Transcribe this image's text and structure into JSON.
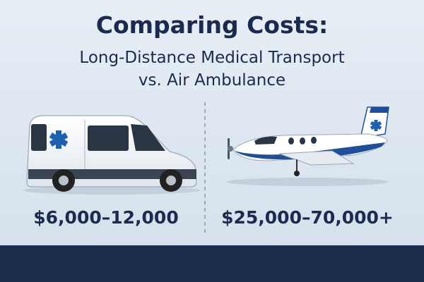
{
  "title": "Comparing Costs:",
  "subtitle": [
    "Long-Distance Medical Transport",
    "vs. Air Ambulance"
  ],
  "items": [
    {
      "price": "$6,000–12,000"
    },
    {
      "price": "$25,000–70,000+"
    }
  ]
}
